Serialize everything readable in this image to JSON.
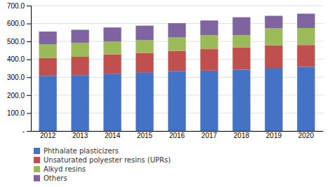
{
  "chart_data": {
    "type": "bar",
    "stacked": true,
    "categories": [
      "2012",
      "2013",
      "2014",
      "2015",
      "2016",
      "2017",
      "2018",
      "2019",
      "2020"
    ],
    "series": [
      {
        "name": "Phthalate plasticizers",
        "color": "#4472C4",
        "values": [
          308,
          312,
          320,
          328,
          335,
          337,
          342,
          348,
          358
        ]
      },
      {
        "name": "Unsaturated polyester resins (UPRs)",
        "color": "#C0504D",
        "values": [
          100,
          103,
          108,
          108,
          112,
          120,
          125,
          130,
          122
        ]
      },
      {
        "name": "Alkyd resins",
        "color": "#9BBB59",
        "values": [
          75,
          78,
          72,
          72,
          75,
          78,
          68,
          95,
          95
        ]
      },
      {
        "name": "Others",
        "color": "#8064A2",
        "values": [
          72,
          72,
          78,
          80,
          80,
          82,
          100,
          70,
          80
        ]
      }
    ],
    "ylim": [
      0,
      700
    ],
    "yticks": [
      {
        "value": 0,
        "label": "-"
      },
      {
        "value": 100,
        "label": "100.0"
      },
      {
        "value": 200,
        "label": "200.0"
      },
      {
        "value": 300,
        "label": "300.0"
      },
      {
        "value": 400,
        "label": "400.0"
      },
      {
        "value": 500,
        "label": "500.0"
      },
      {
        "value": 600,
        "label": "600.0"
      },
      {
        "value": 700,
        "label": "700.0"
      }
    ],
    "grid": true,
    "legend": "bottom"
  }
}
